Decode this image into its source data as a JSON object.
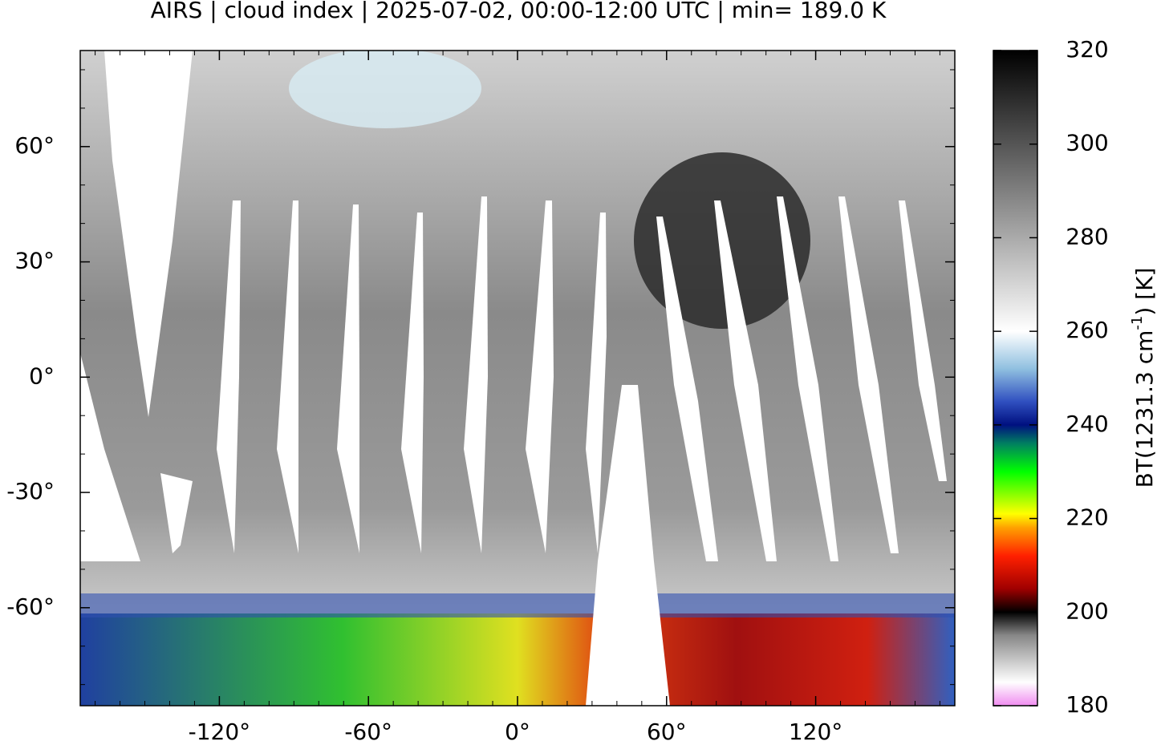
{
  "chart_data": {
    "type": "map",
    "title": "AIRS | cloud index | 2025-07-02, 00:00-12:00 UTC | min= 189.0 K",
    "xlim": [
      -176,
      176
    ],
    "ylim": [
      -85.5,
      85
    ],
    "xticks": [
      {
        "value": -120,
        "label": "-120°"
      },
      {
        "value": -60,
        "label": "-60°"
      },
      {
        "value": 0,
        "label": "0°"
      },
      {
        "value": 60,
        "label": "60°"
      },
      {
        "value": 120,
        "label": "120°"
      }
    ],
    "yticks": [
      {
        "value": -60,
        "label": "-60°"
      },
      {
        "value": -30,
        "label": "-30°"
      },
      {
        "value": 0,
        "label": "0°"
      },
      {
        "value": 30,
        "label": "30°"
      },
      {
        "value": 60,
        "label": "60°"
      }
    ],
    "colorbar": {
      "label": "BT(1231.3 cm",
      "label_sup": "-1",
      "label_end": ") [K]",
      "lim": [
        180,
        320
      ],
      "ticks": [
        180,
        200,
        220,
        240,
        260,
        280,
        300,
        320
      ],
      "colormap": [
        {
          "value": 180,
          "color": "#f08cf0"
        },
        {
          "value": 185,
          "color": "#ffffff"
        },
        {
          "value": 195,
          "color": "#888888"
        },
        {
          "value": 200,
          "color": "#000000"
        },
        {
          "value": 205,
          "color": "#a00000"
        },
        {
          "value": 212,
          "color": "#ff2000"
        },
        {
          "value": 218,
          "color": "#ffa000"
        },
        {
          "value": 221,
          "color": "#ffff00"
        },
        {
          "value": 230,
          "color": "#00ff00"
        },
        {
          "value": 236,
          "color": "#008060"
        },
        {
          "value": 240,
          "color": "#001080"
        },
        {
          "value": 245,
          "color": "#3050c0"
        },
        {
          "value": 252,
          "color": "#90c0e0"
        },
        {
          "value": 260,
          "color": "#ffffff"
        },
        {
          "value": 320,
          "color": "#000000"
        }
      ]
    }
  }
}
